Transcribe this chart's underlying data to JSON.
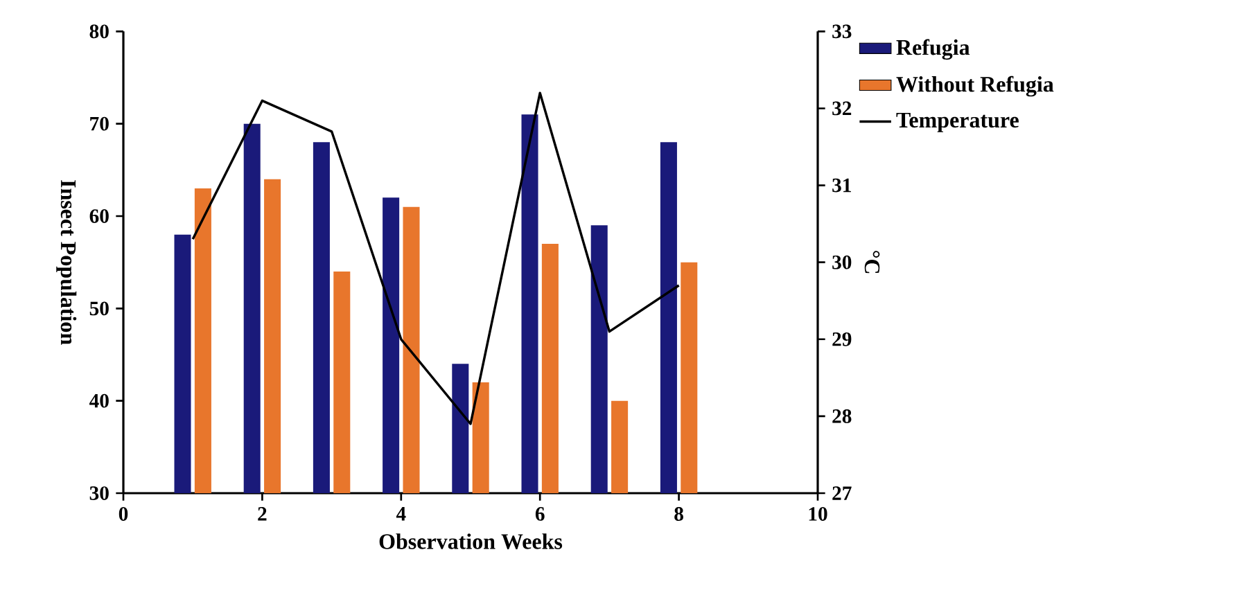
{
  "chart_data": {
    "type": "bar",
    "xlabel": "Observation Weeks",
    "ylabel": "Insect Population",
    "y2label": "°C",
    "x": [
      1,
      2,
      3,
      4,
      5,
      6,
      7,
      8
    ],
    "series": [
      {
        "name": "Refugia",
        "type": "bar",
        "color": "#1a1a7a",
        "values": [
          58,
          70,
          68,
          62,
          44,
          71,
          59,
          68
        ]
      },
      {
        "name": "Without Refugia",
        "type": "bar",
        "color": "#e8762c",
        "values": [
          63,
          64,
          54,
          61,
          42,
          57,
          40,
          55
        ]
      },
      {
        "name": "Temperature",
        "type": "line",
        "axis": "y2",
        "color": "#000000",
        "values": [
          30.3,
          32.1,
          31.7,
          29.0,
          27.9,
          32.2,
          29.1,
          29.7
        ]
      }
    ],
    "xlim": [
      0,
      10
    ],
    "xticks": [
      0,
      2,
      4,
      6,
      8,
      10
    ],
    "ylim": [
      30,
      80
    ],
    "yticks": [
      30,
      40,
      50,
      60,
      70,
      80
    ],
    "y2lim": [
      27,
      33
    ],
    "y2ticks": [
      27,
      28,
      29,
      30,
      31,
      32,
      33
    ],
    "grid": false,
    "legend": "right"
  }
}
